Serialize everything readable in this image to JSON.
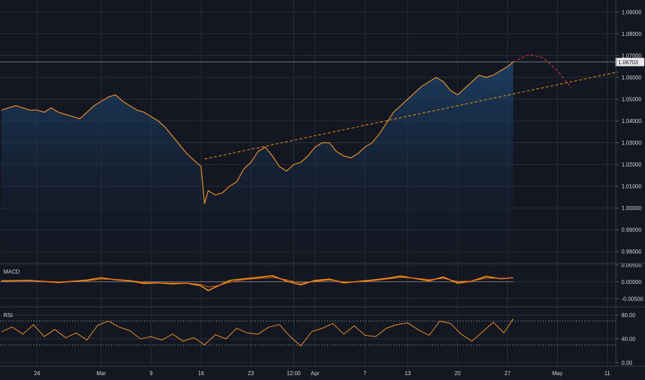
{
  "chart_data": [
    {
      "type": "area",
      "pane": "price",
      "ylim": [
        0.975,
        1.0955
      ],
      "y_ticks": [
        "1.09000",
        "1.08000",
        "1.07000",
        "1.06000",
        "1.05000",
        "1.04000",
        "1.03000",
        "1.02000",
        "1.01000",
        "1.00000",
        "0.99000",
        "0.98000",
        "0.97000"
      ],
      "y_tick_values": [
        1.09,
        1.08,
        1.07,
        1.06,
        1.05,
        1.04,
        1.03,
        1.02,
        1.01,
        1.0,
        0.99,
        0.98,
        0.97
      ],
      "last_price": 1.06703,
      "last_price_label": "1.06703",
      "x_ticks": [
        "24",
        "Mar",
        "9",
        "16",
        "23",
        "12:00",
        "Apr",
        "7",
        "13",
        "20",
        "27",
        "May",
        "11"
      ],
      "x_tick_values": [
        5,
        14,
        21,
        28,
        35,
        41,
        44,
        51,
        57,
        64,
        71,
        78,
        85
      ],
      "series": [
        {
          "x": [
            0,
            1,
            2,
            3,
            4,
            5,
            6,
            7,
            8,
            9,
            10,
            11,
            12,
            13,
            14,
            15,
            16,
            17,
            18,
            19,
            20,
            21,
            22,
            23,
            24,
            25,
            26,
            27,
            28,
            28.5,
            29,
            30,
            31,
            32,
            33,
            34,
            35,
            36,
            37,
            38,
            39,
            40,
            41,
            42,
            43,
            44,
            45,
            46,
            47,
            48,
            49,
            50,
            51,
            52,
            53,
            54,
            55,
            56,
            57,
            58,
            59,
            60,
            61,
            62,
            63,
            64,
            65,
            66,
            67,
            68,
            69,
            70,
            71,
            71.8
          ],
          "values": [
            1.045,
            1.046,
            1.047,
            1.046,
            1.045,
            1.045,
            1.044,
            1.046,
            1.044,
            1.043,
            1.042,
            1.041,
            1.044,
            1.047,
            1.049,
            1.051,
            1.052,
            1.049,
            1.047,
            1.045,
            1.044,
            1.042,
            1.04,
            1.037,
            1.033,
            1.029,
            1.025,
            1.022,
            1.019,
            1.002,
            1.008,
            1.006,
            1.007,
            1.01,
            1.012,
            1.018,
            1.021,
            1.026,
            1.028,
            1.024,
            1.019,
            1.017,
            1.02,
            1.021,
            1.024,
            1.028,
            1.03,
            1.03,
            1.026,
            1.024,
            1.023,
            1.025,
            1.028,
            1.03,
            1.034,
            1.039,
            1.044,
            1.047,
            1.05,
            1.053,
            1.056,
            1.058,
            1.06,
            1.058,
            1.054,
            1.052,
            1.055,
            1.058,
            1.061,
            1.06,
            1.061,
            1.063,
            1.065,
            1.067
          ]
        }
      ],
      "trendline": {
        "x": [
          28.5,
          86.5
        ],
        "values": [
          1.0225,
          1.0625
        ],
        "color": "#ff9800"
      },
      "projection": {
        "x": [
          71.8,
          74,
          76,
          78,
          80
        ],
        "values": [
          1.067,
          1.0705,
          1.069,
          1.063,
          1.055
        ],
        "color": "#e03030"
      },
      "line_color": "#f7931a"
    },
    {
      "type": "line",
      "pane": "MACD",
      "title": "MACD",
      "ylim": [
        -0.0072,
        0.0053
      ],
      "y_ticks": [
        "0.00500",
        "0.00000",
        "-0.00500"
      ],
      "y_tick_values": [
        0.005,
        0.0,
        -0.005
      ],
      "series": [
        {
          "x": [
            0,
            4,
            8,
            12,
            14,
            16,
            18,
            20,
            22,
            24,
            26,
            28,
            29,
            30,
            32,
            34,
            36,
            38,
            40,
            42,
            44,
            46,
            48,
            50,
            52,
            54,
            56,
            58,
            60,
            62,
            64,
            66,
            68,
            70,
            71.8
          ],
          "values": [
            0.0003,
            0.0004,
            -0.0002,
            0.0005,
            0.0012,
            0.0006,
            0.0003,
            -0.0005,
            -0.0003,
            -0.0006,
            -0.0004,
            -0.0012,
            -0.0026,
            -0.0016,
            0.0004,
            0.0009,
            0.0013,
            0.0018,
            0.0002,
            -0.0009,
            0.0004,
            0.0008,
            -0.0003,
            0.0001,
            0.0005,
            0.001,
            0.0017,
            0.001,
            0.0003,
            0.0014,
            -0.0004,
            0.0002,
            0.0016,
            0.0009,
            0.0012
          ]
        },
        {
          "x": [
            0,
            4,
            8,
            12,
            14,
            16,
            18,
            20,
            22,
            24,
            26,
            28,
            29,
            30,
            32,
            34,
            36,
            38,
            40,
            42,
            44,
            46,
            48,
            50,
            52,
            54,
            56,
            58,
            60,
            62,
            64,
            66,
            68,
            70,
            71.8
          ],
          "values": [
            0.0002,
            0.0003,
            0.0,
            0.0003,
            0.0008,
            0.0007,
            0.0004,
            -0.0002,
            -0.0003,
            -0.0004,
            -0.0004,
            -0.0008,
            -0.0015,
            -0.0013,
            -0.0002,
            0.0006,
            0.001,
            0.0013,
            0.0006,
            -0.0004,
            0.0001,
            0.0005,
            0.0,
            0.0,
            0.0003,
            0.0008,
            0.0013,
            0.0011,
            0.0006,
            0.001,
            0.0001,
            0.0002,
            0.0011,
            0.001,
            0.0011
          ]
        }
      ],
      "colors": [
        "#ff9800",
        "#e8641a"
      ]
    },
    {
      "type": "line",
      "pane": "RSI",
      "title": "RSI",
      "ylim": [
        -6,
        93
      ],
      "y_ticks": [
        "80.00",
        "40.00",
        "0.00"
      ],
      "y_tick_values": [
        80,
        40,
        0
      ],
      "bands": [
        70,
        30
      ],
      "series": [
        {
          "x": [
            0,
            1.5,
            3,
            4.5,
            6,
            7.5,
            9,
            10.5,
            12,
            13.5,
            15,
            16.5,
            18,
            19.5,
            21,
            22.5,
            24,
            25.5,
            27,
            28.5,
            30,
            31.5,
            33,
            34.5,
            36,
            37.5,
            39,
            40.5,
            42,
            43.5,
            45,
            46.5,
            48,
            49.5,
            51,
            52.5,
            54,
            55.5,
            57,
            58.5,
            60,
            61.5,
            63,
            64.5,
            66,
            67.5,
            69,
            70.5,
            71.8
          ],
          "values": [
            52,
            60,
            48,
            64,
            44,
            56,
            42,
            50,
            38,
            63,
            70,
            60,
            54,
            40,
            44,
            38,
            48,
            36,
            42,
            30,
            47,
            40,
            58,
            50,
            48,
            60,
            64,
            44,
            28,
            52,
            58,
            66,
            48,
            62,
            46,
            44,
            58,
            64,
            67,
            55,
            46,
            70,
            66,
            48,
            36,
            52,
            68,
            50,
            74
          ]
        }
      ],
      "color": "#f7931a"
    }
  ],
  "colors": {
    "background": "#131722",
    "grid": "#2a2e39",
    "price_line": "#f7931a",
    "area_top": "#1f3a5f",
    "text": "#d1d4dc"
  }
}
